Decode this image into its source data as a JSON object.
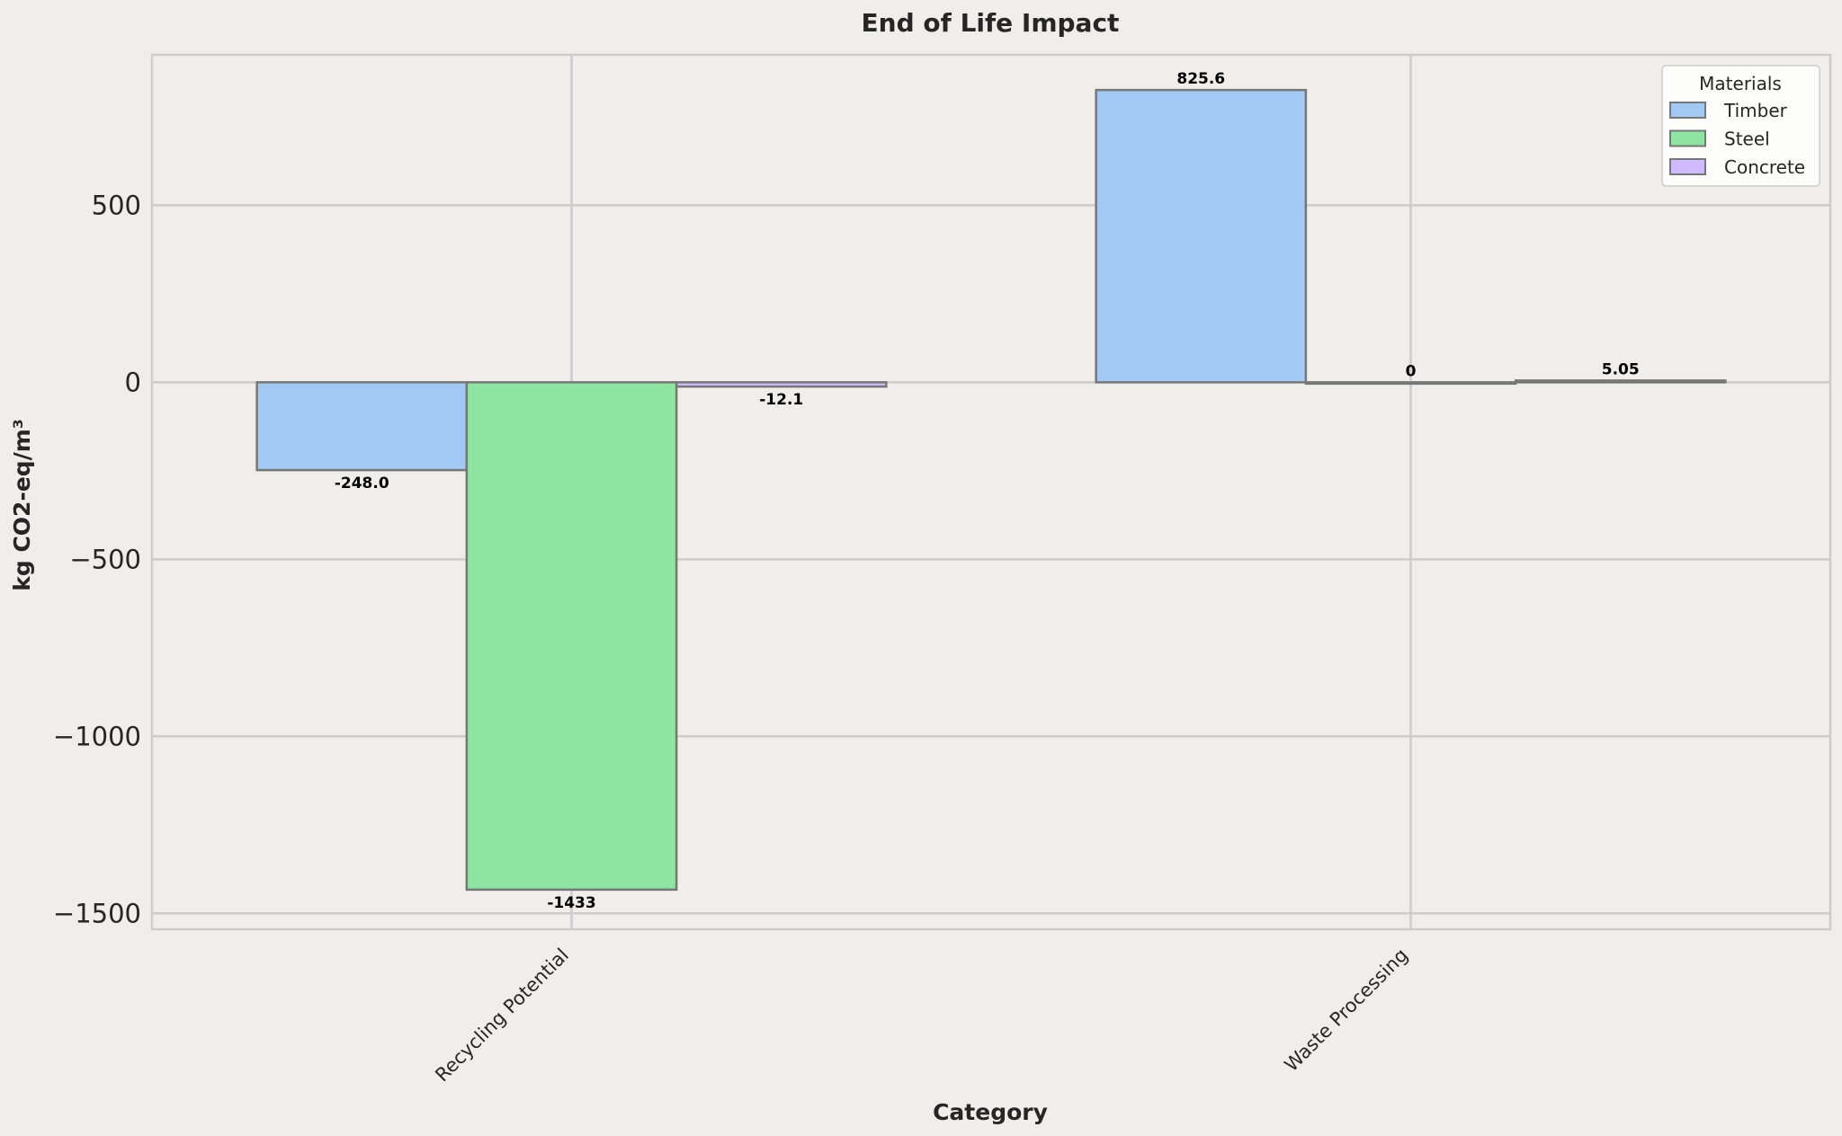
{
  "chart_data": {
    "type": "bar",
    "title": "End of Life Impact",
    "xlabel": "Category",
    "ylabel": "kg CO2-eq/m³",
    "categories": [
      "Recycling Potential",
      "Waste Processing"
    ],
    "series": [
      {
        "name": "Timber",
        "values": [
          -248.0,
          825.6
        ],
        "labels": [
          "-248.0",
          "825.6"
        ],
        "color": "#a1c9f4"
      },
      {
        "name": "Steel",
        "values": [
          -1433,
          0
        ],
        "labels": [
          "-1433",
          "0"
        ],
        "color": "#8de5a1"
      },
      {
        "name": "Concrete",
        "values": [
          -12.1,
          5.05
        ],
        "labels": [
          "-12.1",
          "5.05"
        ],
        "color": "#d0bbff"
      }
    ],
    "ylim": [
      -1545,
      925
    ],
    "yticks": [
      500,
      0,
      -500,
      -1000,
      -1500
    ],
    "ytick_labels": [
      "500",
      "0",
      "−500",
      "−1000",
      "−1500"
    ],
    "grid": true,
    "legend": {
      "title": "Materials",
      "placement": "top-right"
    },
    "colors": {
      "background": "#f0eeea",
      "grid": "#cccccc",
      "bar_edge": "#777777"
    }
  }
}
